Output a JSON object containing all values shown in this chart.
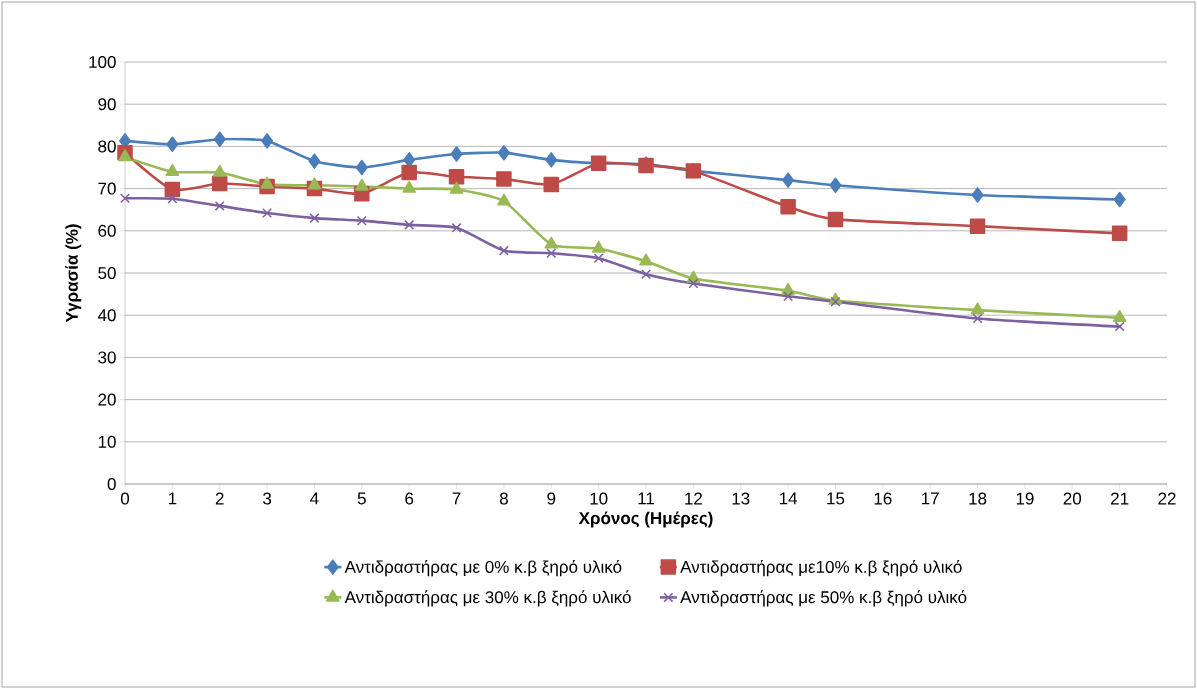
{
  "chart_data": {
    "type": "line",
    "xlabel": "Χρόνος (Ημέρες)",
    "ylabel": "Υγρασία (%)",
    "x": [
      0,
      1,
      2,
      3,
      4,
      5,
      6,
      7,
      8,
      9,
      10,
      11,
      12,
      14,
      15,
      18,
      21
    ],
    "xlim": [
      0,
      22
    ],
    "xticks": [
      0,
      1,
      2,
      3,
      4,
      5,
      6,
      7,
      8,
      9,
      10,
      11,
      12,
      13,
      14,
      15,
      16,
      17,
      18,
      19,
      20,
      21,
      22
    ],
    "ylim": [
      0,
      100
    ],
    "yticks": [
      0,
      10,
      20,
      30,
      40,
      50,
      60,
      70,
      80,
      90,
      100
    ],
    "grid": "y",
    "legend": "bottom",
    "line_style": "solid",
    "series": [
      {
        "name": "Αντιδραστήρας με 0% κ.β ξηρό υλικό",
        "color": "#4a7ebb",
        "marker": "diamond",
        "values": [
          81.3,
          80.5,
          81.7,
          81.3,
          76.5,
          75,
          76.8,
          78.2,
          78.5,
          76.8,
          76,
          75.8,
          74.2,
          72,
          70.8,
          68.5,
          67.4
        ]
      },
      {
        "name": "Αντιδραστήρας με10% κ.β ξηρό υλικό",
        "color": "#be4b48",
        "marker": "square",
        "values": [
          78.5,
          69.8,
          71.2,
          70.5,
          70,
          68.8,
          73.8,
          72.8,
          72.3,
          71,
          76,
          75.5,
          74.2,
          65.7,
          62.7,
          61.1,
          59.4
        ]
      },
      {
        "name": "Αντιδραστήρας με 30% κ.β ξηρό υλικό",
        "color": "#98b954",
        "marker": "triangle",
        "values": [
          77.5,
          74,
          73.8,
          71,
          70.8,
          70.5,
          70,
          69.8,
          67,
          56.8,
          55.8,
          52.8,
          48.7,
          45.8,
          43.5,
          41.2,
          39.4
        ]
      },
      {
        "name": "Αντιδραστήρας με 50% κ.β ξηρό υλικό",
        "color": "#7d60a0",
        "marker": "cross",
        "values": [
          67.7,
          67.6,
          65.9,
          64.2,
          63,
          62.4,
          61.4,
          60.7,
          55.3,
          54.7,
          53.5,
          49.7,
          47.5,
          44.5,
          43.2,
          39.2,
          37.3
        ]
      }
    ]
  }
}
